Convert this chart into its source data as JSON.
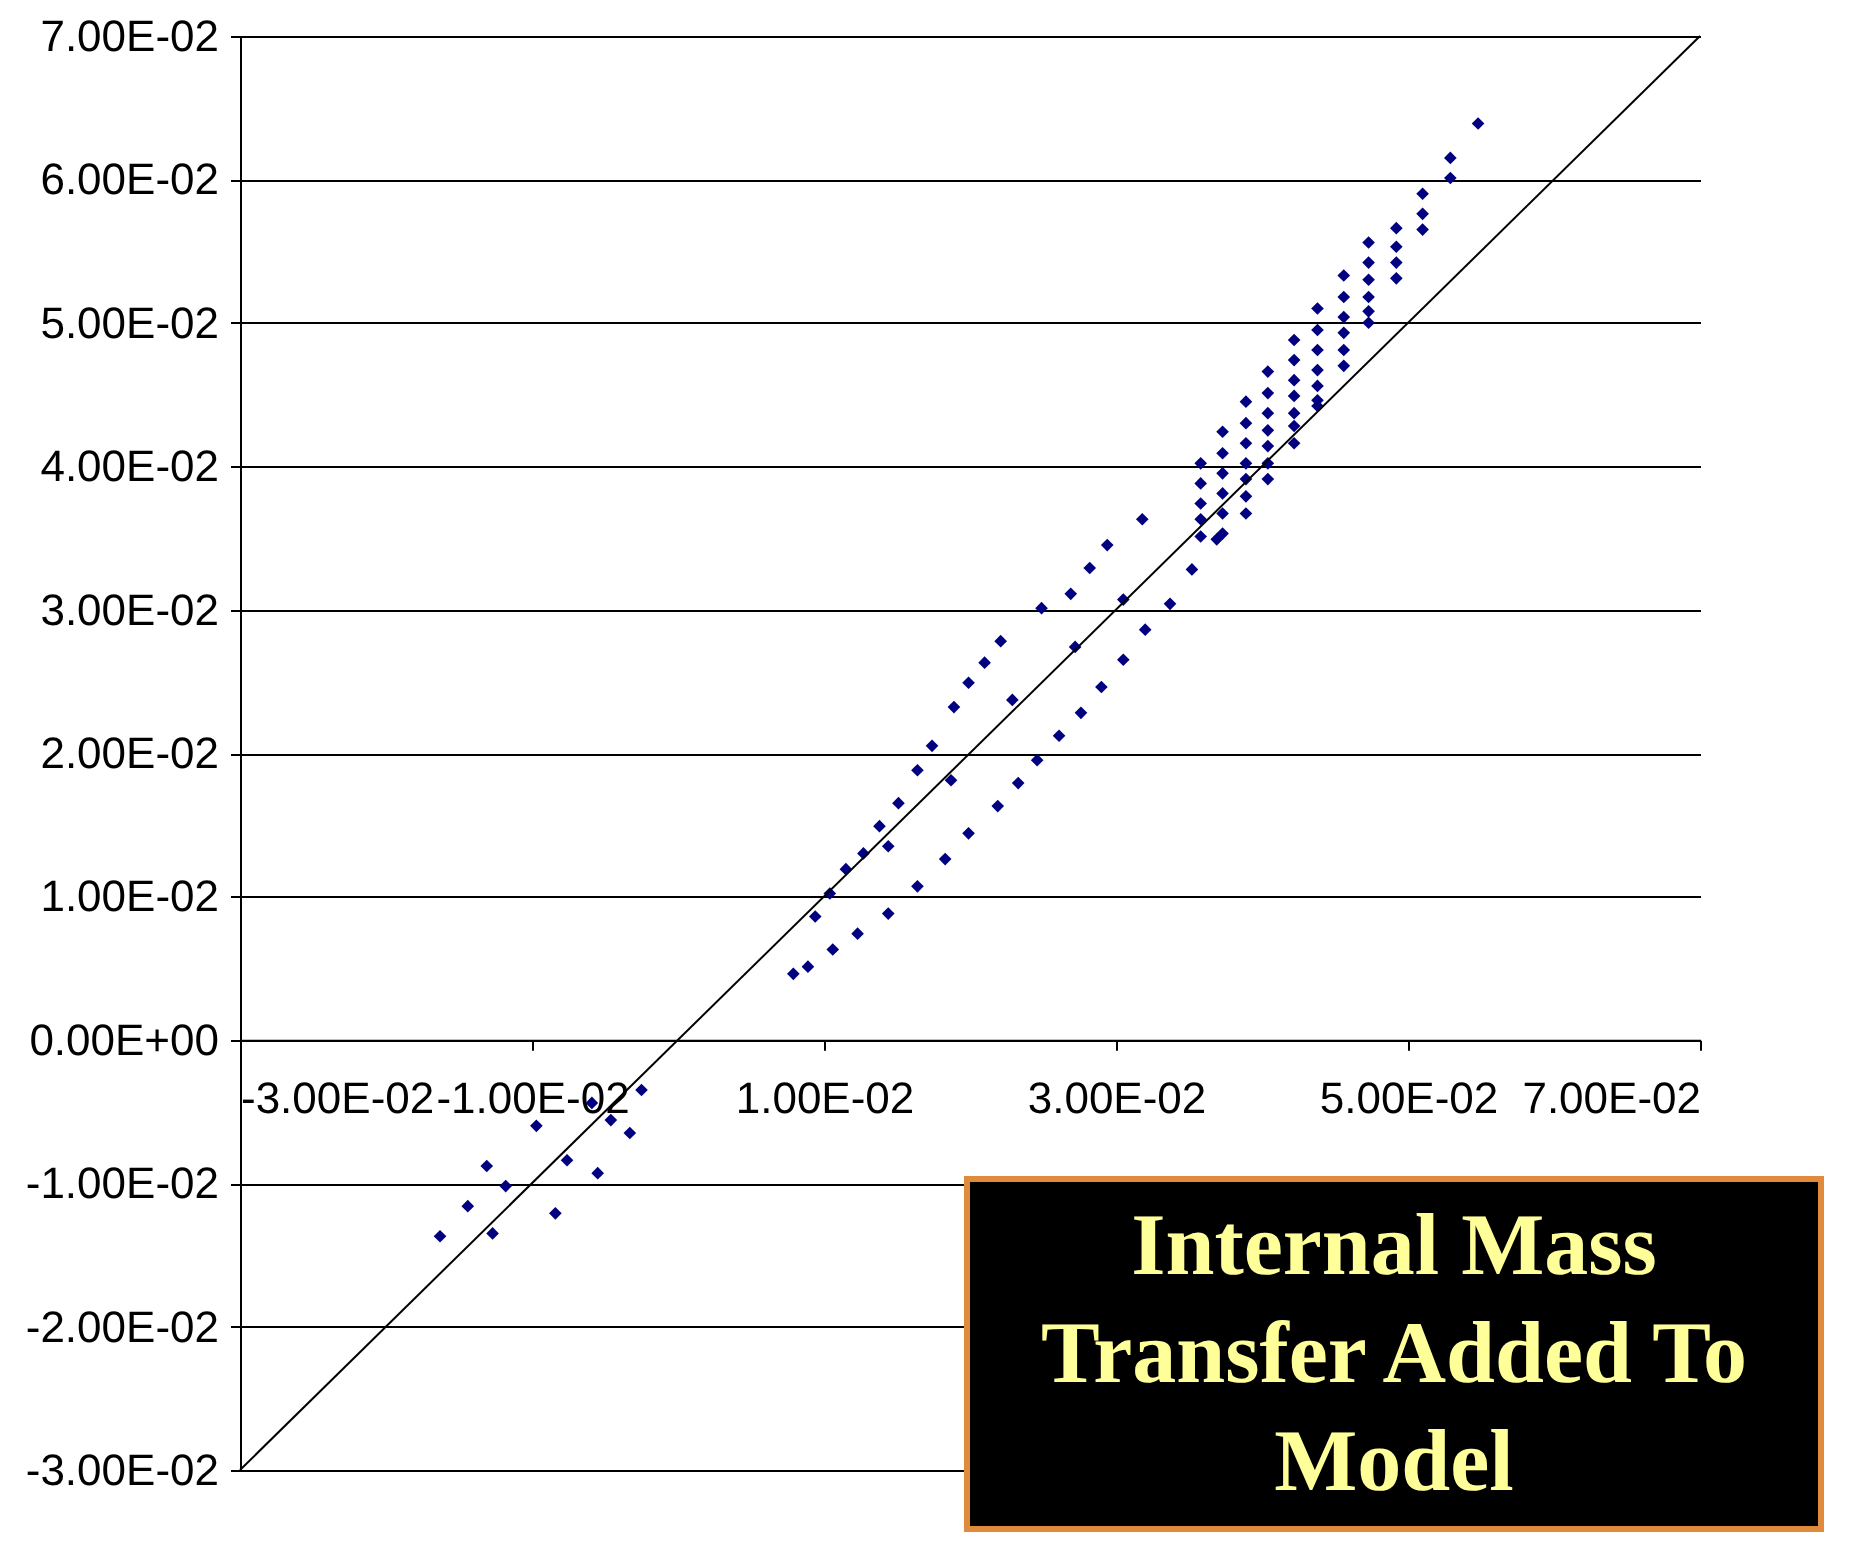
{
  "chart_data": {
    "type": "scatter",
    "xlim": [
      -0.03,
      0.07
    ],
    "ylim": [
      -0.03,
      0.07
    ],
    "xticks": [
      {
        "value": -0.03,
        "label": "-3.00E-02"
      },
      {
        "value": -0.01,
        "label": "-1.00E-02"
      },
      {
        "value": 0.01,
        "label": "1.00E-02"
      },
      {
        "value": 0.03,
        "label": "3.00E-02"
      },
      {
        "value": 0.05,
        "label": "5.00E-02"
      },
      {
        "value": 0.07,
        "label": "7.00E-02"
      }
    ],
    "yticks": [
      {
        "value": -0.03,
        "label": "-3.00E-02"
      },
      {
        "value": -0.02,
        "label": "-2.00E-02"
      },
      {
        "value": -0.01,
        "label": "-1.00E-02"
      },
      {
        "value": 0,
        "label": "0.00E+00"
      },
      {
        "value": 0.01,
        "label": "1.00E-02"
      },
      {
        "value": 0.02,
        "label": "2.00E-02"
      },
      {
        "value": 0.03,
        "label": "3.00E-02"
      },
      {
        "value": 0.04,
        "label": "4.00E-02"
      },
      {
        "value": 0.05,
        "label": "5.00E-02"
      },
      {
        "value": 0.06,
        "label": "6.00E-02"
      },
      {
        "value": 0.07,
        "label": "7.00E-02"
      }
    ],
    "grid": "y",
    "annotations": [
      "Internal Mass Transfer Added To Model"
    ],
    "series": [
      {
        "marker": "diamond",
        "color": "#000080",
        "x": [
          0.0548,
          0.0529,
          0.0529,
          0.051,
          0.051,
          0.051,
          0.0492,
          0.0492,
          0.0492,
          0.0492,
          0.0473,
          0.0473,
          0.0473,
          0.0473,
          0.0473,
          0.0473,
          0.0456,
          0.0456,
          0.0456,
          0.0456,
          0.0456,
          0.0456,
          0.0438,
          0.0438,
          0.0438,
          0.0438,
          0.0438,
          0.0438,
          0.0438,
          0.0422,
          0.0422,
          0.0422,
          0.0422,
          0.0422,
          0.0422,
          0.0422,
          0.0404,
          0.0404,
          0.0404,
          0.0404,
          0.0404,
          0.0404,
          0.0404,
          0.0389,
          0.0389,
          0.0389,
          0.0389,
          0.0389,
          0.0389,
          0.0389,
          0.0373,
          0.0373,
          0.0373,
          0.0373,
          0.0373,
          0.0373,
          0.0358,
          0.0358,
          0.0358,
          0.0358,
          0.0358,
          0.0249,
          0.0221,
          0.021,
          0.0199,
          0.0189,
          0.0174,
          0.0164,
          0.0151,
          0.0138,
          0.0127,
          0.0115,
          0.0104,
          0.0094,
          0.0079,
          0.0269,
          0.0282,
          0.0294,
          0.0318,
          0.0369,
          0.0352,
          0.0337,
          0.032,
          0.0305,
          0.029,
          0.0276,
          0.0261,
          0.0246,
          0.0233,
          0.0219,
          0.0199,
          0.0183,
          0.0164,
          0.0144,
          0.0123,
          0.0106,
          0.0089,
          0.0229,
          0.0187,
          0.0144,
          0.0272,
          0.0305,
          -0.0025,
          -0.0163,
          -0.0097,
          -0.0131,
          -0.0059,
          -0.0084,
          -0.0055,
          -0.0033,
          -0.0127,
          -0.0118,
          -0.0076,
          -0.0046,
          -0.0144
        ],
        "values": [
          0.0639,
          0.0615,
          0.0601,
          0.059,
          0.0576,
          0.0565,
          0.0566,
          0.0553,
          0.0542,
          0.0531,
          0.0556,
          0.0542,
          0.053,
          0.0518,
          0.0508,
          0.05,
          0.0533,
          0.0518,
          0.0504,
          0.0493,
          0.0481,
          0.047,
          0.051,
          0.0495,
          0.0481,
          0.0467,
          0.0456,
          0.0446,
          0.0442,
          0.0488,
          0.0474,
          0.046,
          0.0449,
          0.0437,
          0.0428,
          0.0416,
          0.0466,
          0.0451,
          0.0437,
          0.0425,
          0.0414,
          0.0402,
          0.0391,
          0.0445,
          0.043,
          0.0416,
          0.0402,
          0.0391,
          0.0379,
          0.0367,
          0.0424,
          0.0409,
          0.0395,
          0.0381,
          0.0367,
          0.0353,
          0.0402,
          0.0388,
          0.0374,
          0.0363,
          0.0351,
          0.0301,
          0.0278,
          0.0263,
          0.0249,
          0.0232,
          0.0205,
          0.0188,
          0.0165,
          0.0149,
          0.013,
          0.0119,
          0.0102,
          0.0086,
          0.0046,
          0.0311,
          0.0329,
          0.0345,
          0.0363,
          0.0349,
          0.0328,
          0.0304,
          0.0286,
          0.0265,
          0.0246,
          0.0228,
          0.0212,
          0.0195,
          0.0179,
          0.0163,
          0.0144,
          0.0126,
          0.0107,
          0.0088,
          0.0074,
          0.0063,
          0.0051,
          0.0237,
          0.0181,
          0.0135,
          0.0274,
          0.0307,
          -0.0035,
          -0.0137,
          -0.006,
          -0.0088,
          -0.0044,
          -0.0121,
          -0.0093,
          -0.0065,
          -0.0135,
          -0.0102,
          -0.0084,
          -0.0056,
          -0.0116
        ]
      },
      {
        "type": "line",
        "color": "#000000",
        "x": [
          -0.03,
          0.07
        ],
        "values": [
          -0.03,
          0.07
        ]
      }
    ]
  }
}
